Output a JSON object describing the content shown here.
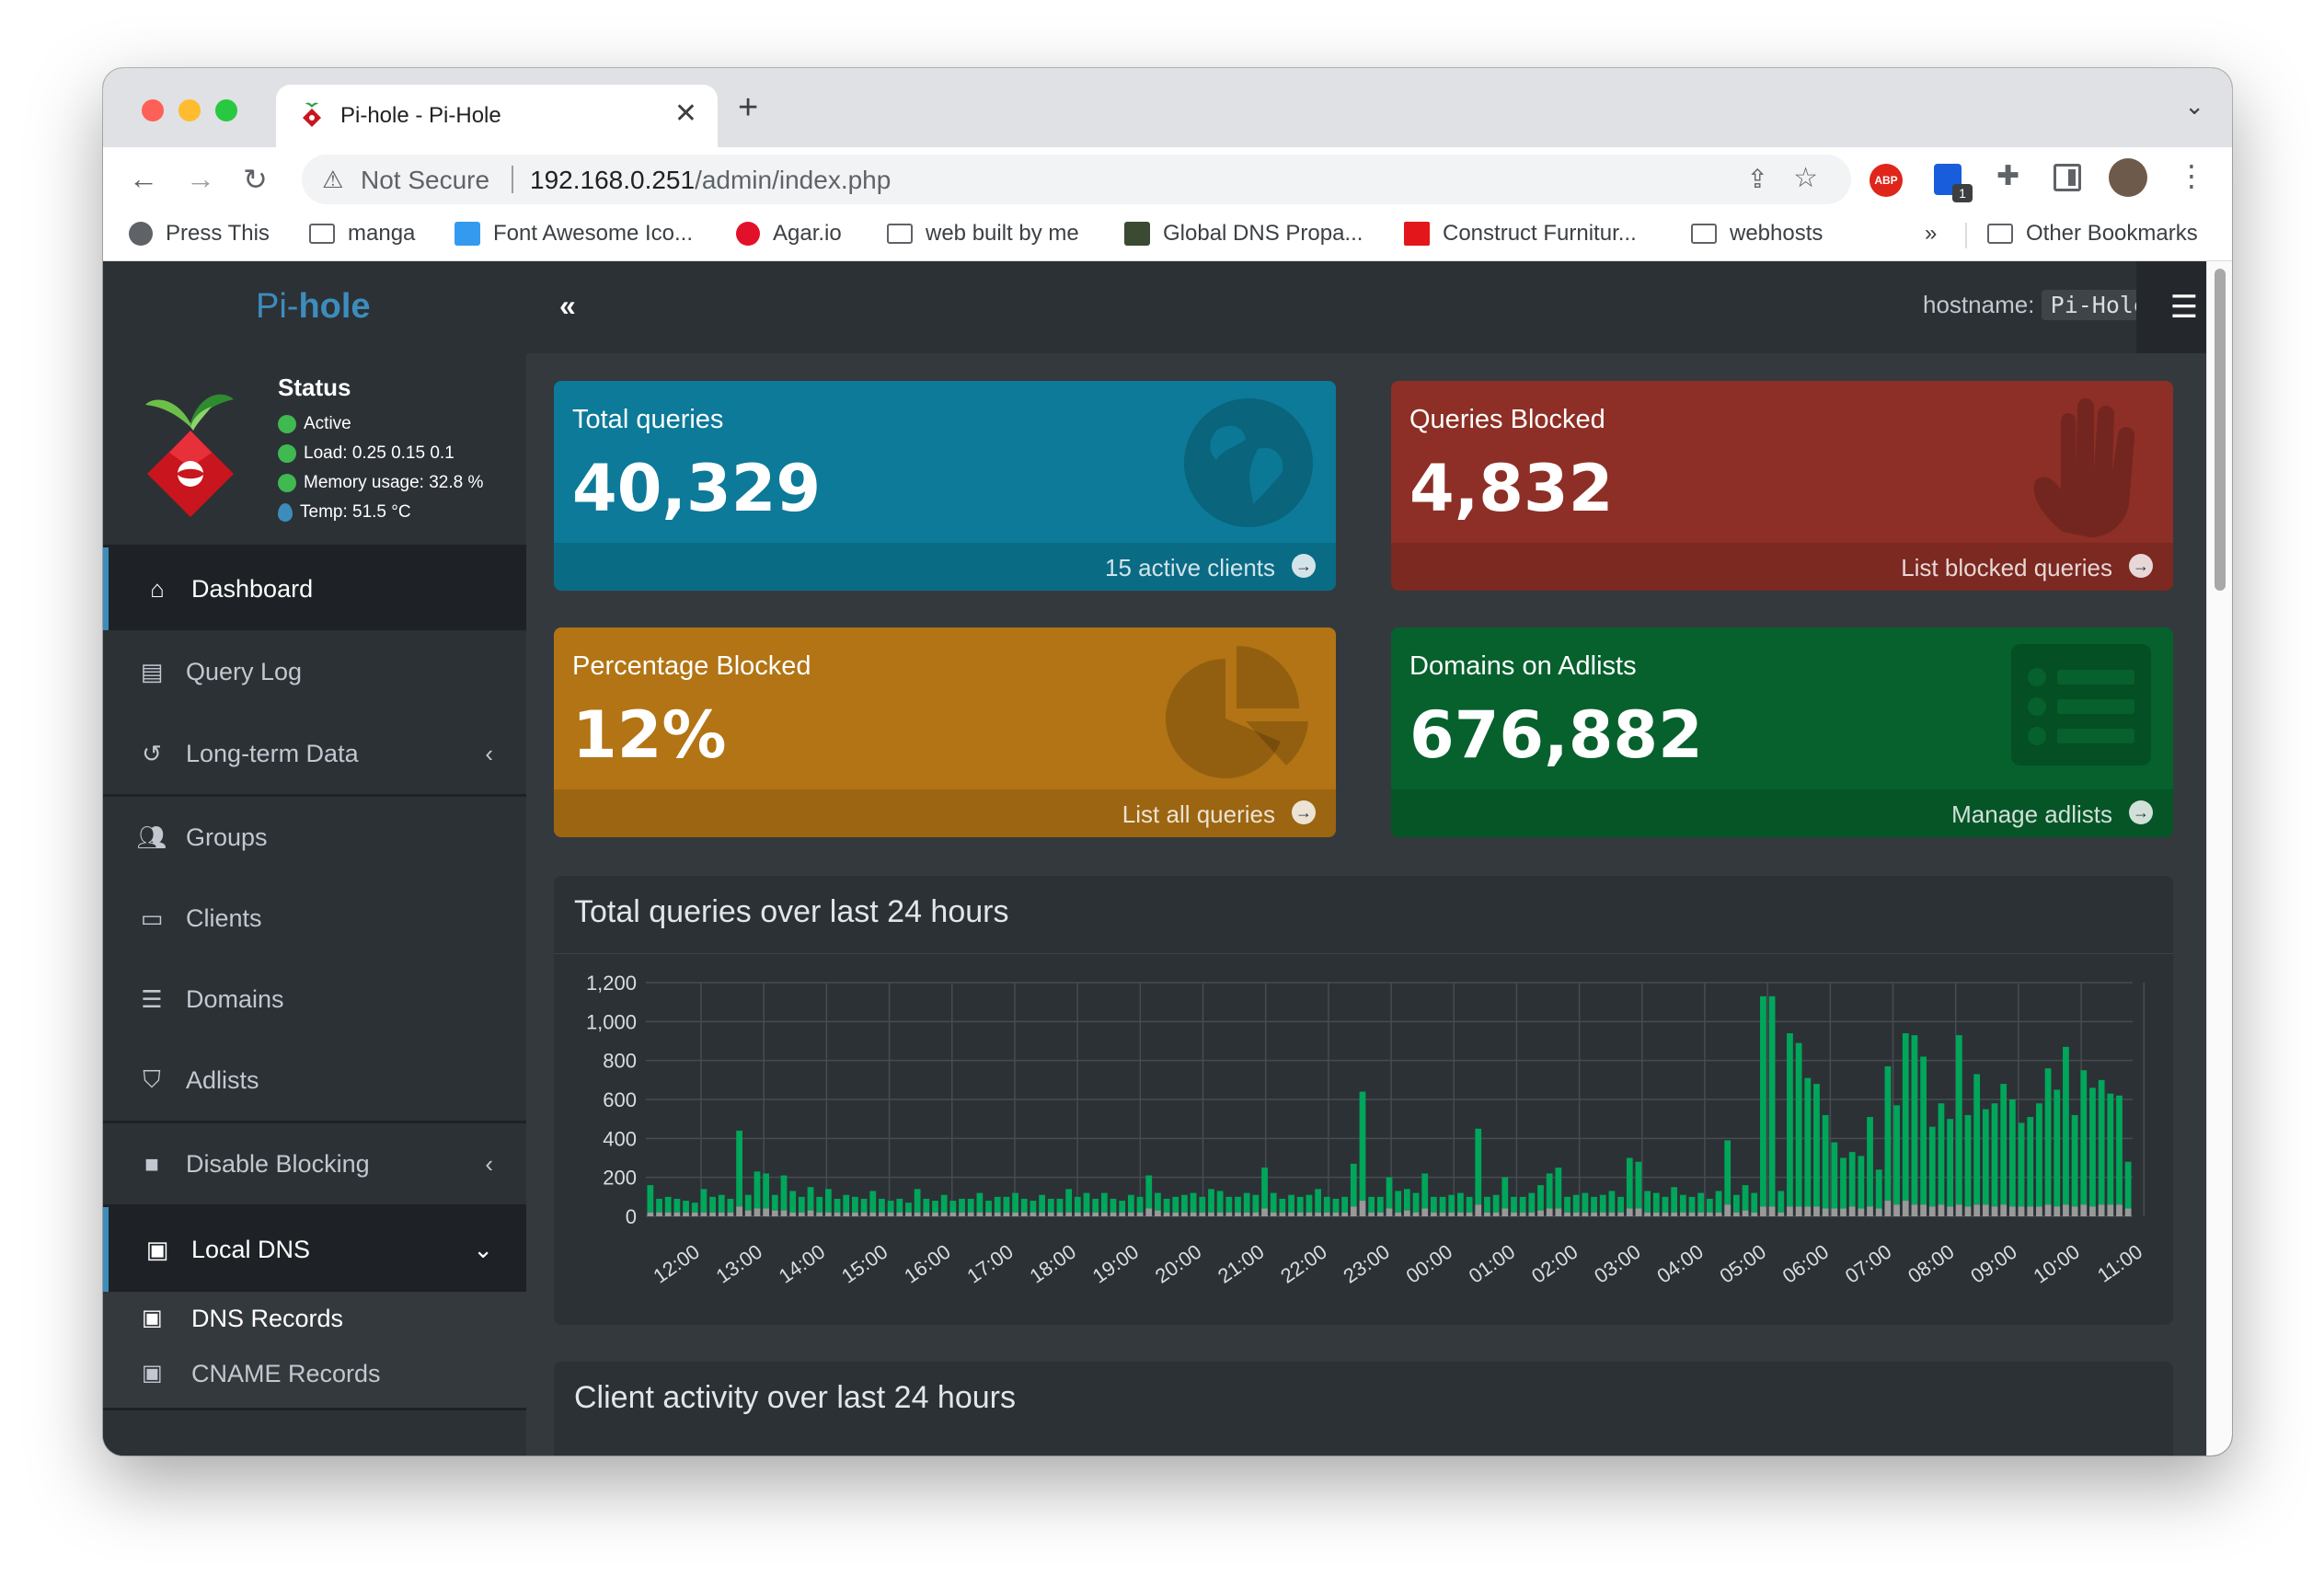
{
  "browser": {
    "tab_title": "Pi-hole - Pi-Hole",
    "tab_close": "✕",
    "new_tab": "+",
    "tab_menu": "⌄",
    "security_label": "Not Secure",
    "url_host": "192.168.0.251",
    "url_path": "/admin/index.php",
    "abp_label": "ABP",
    "extension_badge": "1",
    "bookmarks": [
      {
        "label": "Press This",
        "icon": "globe-icon"
      },
      {
        "label": "manga",
        "icon": "folder-icon"
      },
      {
        "label": "Font Awesome Ico...",
        "icon": "flag-icon"
      },
      {
        "label": "Agar.io",
        "icon": "red-circle-icon"
      },
      {
        "label": "web built by me",
        "icon": "folder-icon"
      },
      {
        "label": "Global DNS Propa...",
        "icon": "site-icon"
      },
      {
        "label": "Construct Furnitur...",
        "icon": "site-icon"
      },
      {
        "label": "webhosts",
        "icon": "folder-icon"
      }
    ],
    "bookmarks_overflow": "»",
    "other_bookmarks": "Other Bookmarks"
  },
  "app": {
    "brand_prefix": "Pi-",
    "brand_suffix": "hole",
    "collapse": "«",
    "hostname_label": "hostname:",
    "hostname_value": "Pi-Hole",
    "status": {
      "title": "Status",
      "active": "Active",
      "load": "Load:  0.25  0.15  0.1",
      "memory": "Memory usage:  32.8 %",
      "temp": "Temp: 51.5 °C"
    },
    "menu": {
      "dashboard": "Dashboard",
      "query_log": "Query Log",
      "long_term": "Long-term Data",
      "groups": "Groups",
      "clients": "Clients",
      "domains": "Domains",
      "adlists": "Adlists",
      "disable_blocking": "Disable Blocking",
      "local_dns": "Local DNS",
      "dns_records": "DNS Records",
      "cname_records": "CNAME Records"
    },
    "stats": {
      "total_queries": {
        "title": "Total queries",
        "value": "40,329",
        "footer": "15 active clients",
        "color": "#0c7a98"
      },
      "queries_blocked": {
        "title": "Queries Blocked",
        "value": "4,832",
        "footer": "List blocked queries",
        "color": "#8d2f26"
      },
      "percentage_blocked": {
        "title": "Percentage Blocked",
        "value": "12%",
        "footer": "List all queries",
        "color": "#b27414"
      },
      "domains_adlists": {
        "title": "Domains on Adlists",
        "value": "676,882",
        "footer": "Manage adlists",
        "color": "#06612d"
      }
    },
    "chart_panel_title": "Total queries over last 24 hours",
    "client_panel_title": "Client activity over last 24 hours"
  },
  "chart_data": {
    "type": "bar",
    "title": "Total queries over last 24 hours",
    "ylim": [
      0,
      1200
    ],
    "yticks": [
      "0",
      "200",
      "400",
      "600",
      "800",
      "1,000",
      "1,200"
    ],
    "xticks": [
      "12:00",
      "13:00",
      "14:00",
      "15:00",
      "16:00",
      "17:00",
      "18:00",
      "19:00",
      "20:00",
      "21:00",
      "22:00",
      "23:00",
      "00:00",
      "01:00",
      "02:00",
      "03:00",
      "04:00",
      "05:00",
      "06:00",
      "07:00",
      "08:00",
      "09:00",
      "10:00",
      "11:00"
    ],
    "grid": true,
    "series": [
      {
        "color": "#00a65a",
        "values": [
          160,
          90,
          100,
          90,
          80,
          70,
          140,
          100,
          110,
          90,
          440,
          110,
          230,
          220,
          110,
          210,
          130,
          100,
          150,
          100,
          140,
          90,
          110,
          100,
          90,
          130,
          90,
          80,
          90,
          70,
          140,
          90,
          80,
          110,
          80,
          90,
          90,
          120,
          80,
          100,
          100,
          120,
          90,
          80,
          110,
          90,
          90,
          140,
          100,
          120,
          90,
          120,
          90,
          80,
          110,
          100,
          210,
          120,
          90,
          100,
          110,
          120,
          100,
          140,
          130,
          100,
          100,
          120,
          110,
          250,
          120,
          90,
          110,
          100,
          110,
          140,
          100,
          90,
          100,
          270,
          640,
          100,
          100,
          200,
          130,
          140,
          120,
          220,
          100,
          100,
          110,
          120,
          100,
          450,
          100,
          110,
          200,
          100,
          100,
          120,
          160,
          220,
          250,
          100,
          110,
          120,
          100,
          110,
          130,
          100,
          300,
          280,
          130,
          120,
          100,
          150,
          110,
          100,
          120,
          90,
          130,
          390,
          110,
          160,
          120,
          1130,
          1130,
          130,
          940,
          890,
          710,
          680,
          520,
          380,
          300,
          330,
          310,
          510,
          240,
          770,
          570,
          940,
          930,
          820,
          460,
          580,
          500,
          930,
          520,
          730,
          550,
          580,
          680,
          600,
          480,
          510,
          580,
          760,
          650,
          870,
          520,
          750,
          660,
          700,
          630,
          620,
          280
        ]
      },
      {
        "color": "#999999",
        "values": [
          20,
          20,
          20,
          20,
          20,
          20,
          20,
          20,
          20,
          20,
          50,
          30,
          40,
          40,
          30,
          30,
          20,
          20,
          30,
          20,
          20,
          20,
          20,
          20,
          20,
          20,
          20,
          20,
          20,
          20,
          20,
          20,
          20,
          20,
          20,
          20,
          20,
          20,
          20,
          20,
          20,
          20,
          20,
          20,
          20,
          20,
          20,
          20,
          20,
          20,
          20,
          20,
          20,
          20,
          20,
          20,
          40,
          30,
          20,
          20,
          20,
          20,
          20,
          20,
          20,
          20,
          20,
          20,
          20,
          40,
          20,
          20,
          20,
          20,
          20,
          20,
          20,
          20,
          20,
          50,
          80,
          20,
          20,
          40,
          20,
          30,
          20,
          40,
          20,
          20,
          20,
          20,
          20,
          60,
          20,
          20,
          40,
          20,
          20,
          20,
          30,
          40,
          40,
          20,
          20,
          20,
          20,
          20,
          20,
          20,
          40,
          40,
          20,
          20,
          20,
          20,
          20,
          20,
          20,
          20,
          20,
          60,
          20,
          30,
          20,
          50,
          50,
          20,
          50,
          50,
          50,
          50,
          40,
          40,
          40,
          50,
          40,
          50,
          40,
          80,
          60,
          80,
          60,
          60,
          50,
          60,
          50,
          60,
          50,
          60,
          60,
          50,
          60,
          50,
          50,
          50,
          50,
          60,
          50,
          60,
          50,
          60,
          50,
          60,
          60,
          60,
          40
        ]
      }
    ]
  }
}
